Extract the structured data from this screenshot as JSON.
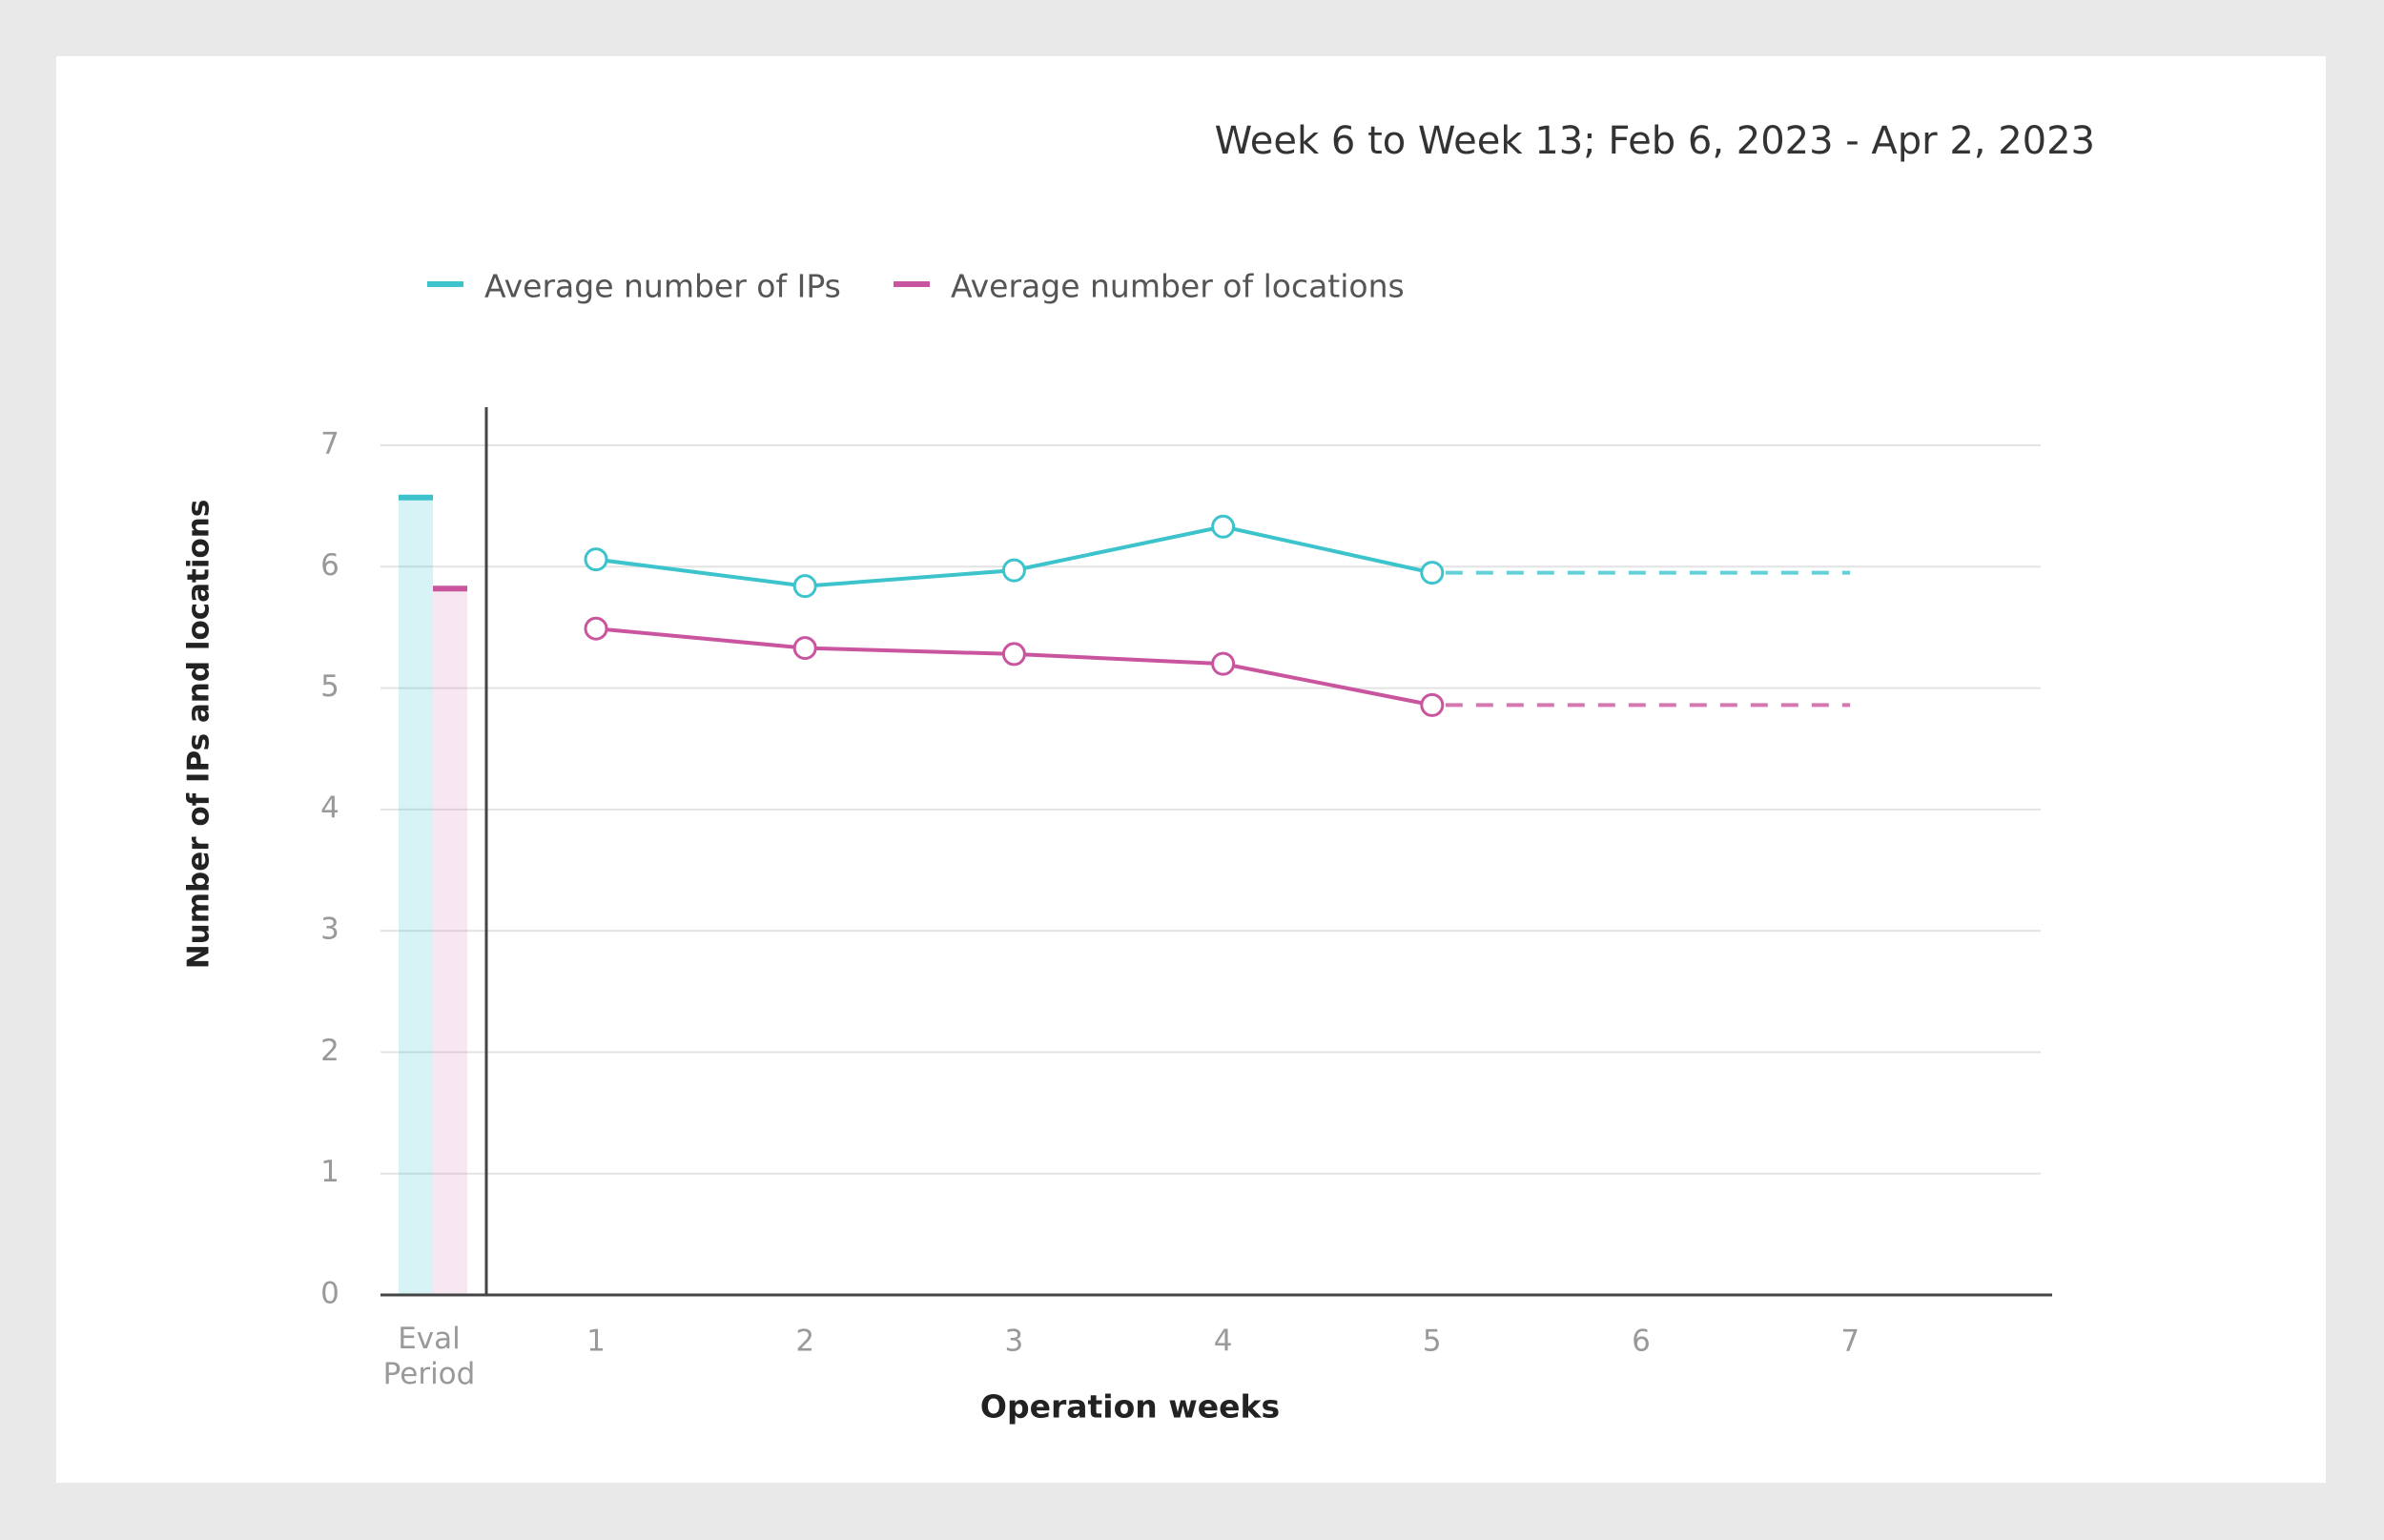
{
  "chart_data": {
    "type": "line",
    "title": "Week 6 to Week 13; Feb 6, 2023 - Apr 2, 2023",
    "x_label": "Operation weeks",
    "y_label": "Number of IPs and locations",
    "eval_label": "Eval Period",
    "x": [
      1,
      2,
      3,
      4,
      5,
      6,
      7
    ],
    "xticks": [
      1,
      2,
      3,
      4,
      5,
      6,
      7
    ],
    "ylim": [
      0,
      7
    ],
    "yticks": [
      0,
      1,
      2,
      3,
      4,
      5,
      6,
      7
    ],
    "grid": true,
    "legend": "top-left",
    "series": [
      {
        "name": "Average number of IPs",
        "color": "#3cc3cc",
        "eval_value": 6.57,
        "values": [
          6.06,
          5.84,
          5.97,
          6.33,
          5.95,
          null,
          null
        ]
      },
      {
        "name": "Average number of locations",
        "color": "#c9559e",
        "eval_value": 5.82,
        "values": [
          5.49,
          5.33,
          5.28,
          5.2,
          4.86,
          null,
          null
        ]
      }
    ]
  }
}
